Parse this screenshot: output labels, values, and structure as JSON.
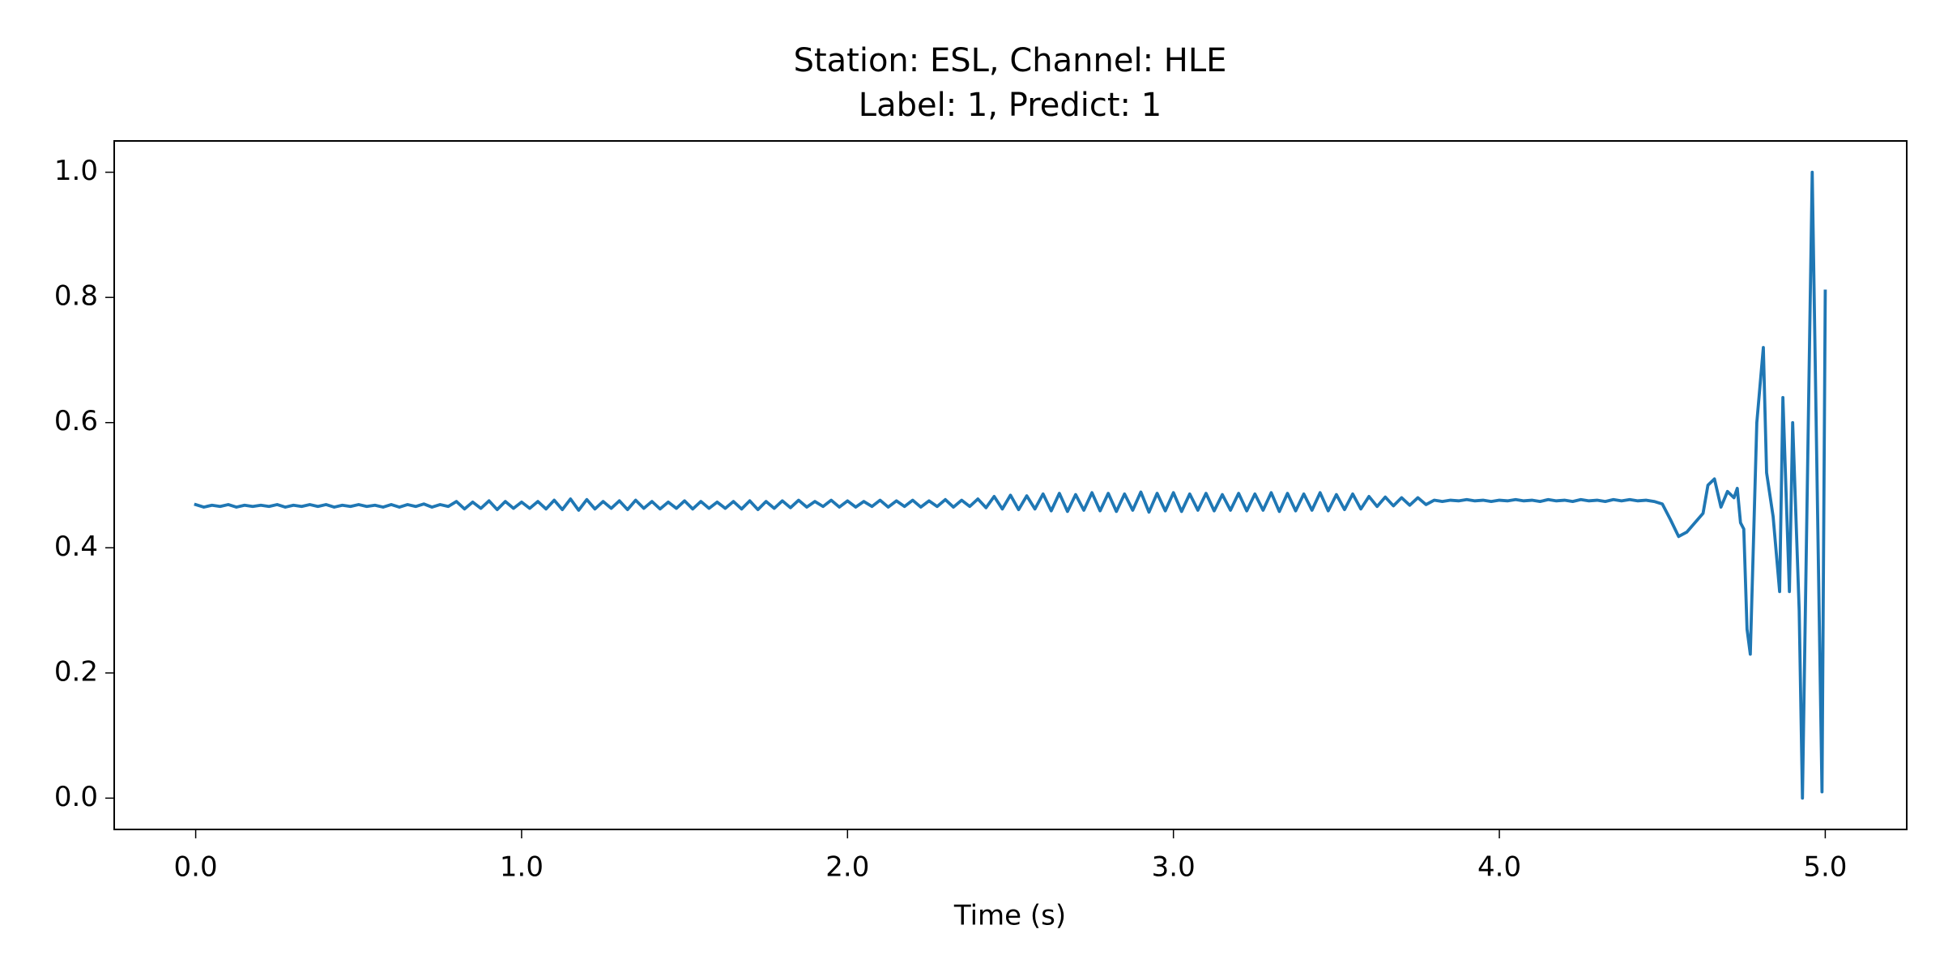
{
  "chart_data": {
    "type": "line",
    "title": "Station: ESL, Channel: HLE",
    "subtitle": "Label: 1, Predict: 1",
    "x_label": "Time (s)",
    "xlim": [
      -0.25,
      5.25
    ],
    "ylim": [
      -0.05,
      1.05
    ],
    "xticks": [
      {
        "value": 0,
        "label": "0.0"
      },
      {
        "value": 1,
        "label": "1.0"
      },
      {
        "value": 2,
        "label": "2.0"
      },
      {
        "value": 3,
        "label": "3.0"
      },
      {
        "value": 4,
        "label": "4.0"
      },
      {
        "value": 5,
        "label": "5.0"
      }
    ],
    "yticks": [
      {
        "value": 0,
        "label": "0.0"
      },
      0.2,
      0.4,
      0.6,
      0.8,
      {
        "value": 1,
        "label": "1.0"
      }
    ],
    "x": [
      0,
      0.025,
      0.05,
      0.075,
      0.1,
      0.125,
      0.15,
      0.175,
      0.2,
      0.225,
      0.25,
      0.275,
      0.3,
      0.325,
      0.35,
      0.375,
      0.4,
      0.425,
      0.45,
      0.475,
      0.5,
      0.525,
      0.55,
      0.575,
      0.6,
      0.625,
      0.65,
      0.675,
      0.7,
      0.725,
      0.75,
      0.775,
      0.8,
      0.825,
      0.85,
      0.875,
      0.9,
      0.925,
      0.95,
      0.975,
      1,
      1.025,
      1.05,
      1.075,
      1.1,
      1.125,
      1.15,
      1.175,
      1.2,
      1.225,
      1.25,
      1.275,
      1.3,
      1.325,
      1.35,
      1.375,
      1.4,
      1.425,
      1.45,
      1.475,
      1.5,
      1.525,
      1.55,
      1.575,
      1.6,
      1.625,
      1.65,
      1.675,
      1.7,
      1.725,
      1.75,
      1.775,
      1.8,
      1.825,
      1.85,
      1.875,
      1.9,
      1.925,
      1.95,
      1.975,
      2,
      2.025,
      2.05,
      2.075,
      2.1,
      2.125,
      2.15,
      2.175,
      2.2,
      2.225,
      2.25,
      2.275,
      2.3,
      2.325,
      2.35,
      2.375,
      2.4,
      2.425,
      2.45,
      2.475,
      2.5,
      2.525,
      2.55,
      2.575,
      2.6,
      2.625,
      2.65,
      2.675,
      2.7,
      2.725,
      2.75,
      2.775,
      2.8,
      2.825,
      2.85,
      2.875,
      2.9,
      2.925,
      2.95,
      2.975,
      3,
      3.025,
      3.05,
      3.075,
      3.1,
      3.125,
      3.15,
      3.175,
      3.2,
      3.225,
      3.25,
      3.275,
      3.3,
      3.325,
      3.35,
      3.375,
      3.4,
      3.425,
      3.45,
      3.475,
      3.5,
      3.525,
      3.55,
      3.575,
      3.6,
      3.625,
      3.65,
      3.675,
      3.7,
      3.725,
      3.75,
      3.775,
      3.8,
      3.825,
      3.85,
      3.875,
      3.9,
      3.925,
      3.95,
      3.975,
      4,
      4.025,
      4.05,
      4.075,
      4.1,
      4.125,
      4.15,
      4.175,
      4.2,
      4.225,
      4.25,
      4.275,
      4.3,
      4.325,
      4.35,
      4.375,
      4.4,
      4.425,
      4.45,
      4.475,
      4.5,
      4.525,
      4.55,
      4.575,
      4.6,
      4.625,
      4.64,
      4.66,
      4.68,
      4.7,
      4.72,
      4.73,
      4.74,
      4.75,
      4.76,
      4.77,
      4.79,
      4.81,
      4.82,
      4.84,
      4.86,
      4.87,
      4.89,
      4.9,
      4.92,
      4.93,
      4.96,
      4.99,
      5
    ],
    "series": [
      {
        "color": "#1f77b4",
        "values": [
          0.469,
          0.465,
          0.468,
          0.466,
          0.469,
          0.465,
          0.468,
          0.466,
          0.468,
          0.466,
          0.469,
          0.465,
          0.468,
          0.466,
          0.469,
          0.466,
          0.469,
          0.465,
          0.468,
          0.466,
          0.469,
          0.466,
          0.468,
          0.465,
          0.469,
          0.465,
          0.469,
          0.466,
          0.47,
          0.465,
          0.469,
          0.466,
          0.474,
          0.462,
          0.473,
          0.463,
          0.475,
          0.461,
          0.474,
          0.463,
          0.473,
          0.463,
          0.474,
          0.462,
          0.476,
          0.461,
          0.478,
          0.46,
          0.477,
          0.462,
          0.474,
          0.463,
          0.475,
          0.461,
          0.476,
          0.463,
          0.474,
          0.462,
          0.473,
          0.463,
          0.475,
          0.462,
          0.474,
          0.463,
          0.473,
          0.463,
          0.474,
          0.462,
          0.475,
          0.461,
          0.474,
          0.463,
          0.475,
          0.464,
          0.476,
          0.465,
          0.474,
          0.466,
          0.476,
          0.465,
          0.475,
          0.465,
          0.474,
          0.466,
          0.476,
          0.465,
          0.475,
          0.466,
          0.476,
          0.465,
          0.475,
          0.466,
          0.477,
          0.465,
          0.476,
          0.466,
          0.478,
          0.464,
          0.482,
          0.462,
          0.484,
          0.461,
          0.483,
          0.462,
          0.486,
          0.459,
          0.487,
          0.458,
          0.485,
          0.46,
          0.488,
          0.459,
          0.487,
          0.458,
          0.486,
          0.46,
          0.489,
          0.457,
          0.487,
          0.459,
          0.488,
          0.458,
          0.486,
          0.46,
          0.487,
          0.459,
          0.485,
          0.46,
          0.487,
          0.459,
          0.486,
          0.46,
          0.488,
          0.458,
          0.487,
          0.459,
          0.486,
          0.46,
          0.488,
          0.459,
          0.485,
          0.461,
          0.486,
          0.462,
          0.482,
          0.466,
          0.481,
          0.467,
          0.48,
          0.468,
          0.48,
          0.469,
          0.476,
          0.474,
          0.476,
          0.475,
          0.477,
          0.475,
          0.476,
          0.474,
          0.476,
          0.475,
          0.477,
          0.475,
          0.476,
          0.474,
          0.477,
          0.475,
          0.476,
          0.474,
          0.477,
          0.475,
          0.476,
          0.474,
          0.477,
          0.475,
          0.477,
          0.475,
          0.476,
          0.474,
          0.47,
          0.445,
          0.418,
          0.425,
          0.44,
          0.455,
          0.5,
          0.51,
          0.465,
          0.49,
          0.48,
          0.495,
          0.44,
          0.43,
          0.27,
          0.23,
          0.6,
          0.72,
          0.52,
          0.45,
          0.33,
          0.64,
          0.33,
          0.6,
          0.3,
          0.0,
          1.0,
          0.01,
          0.81
        ]
      }
    ]
  }
}
